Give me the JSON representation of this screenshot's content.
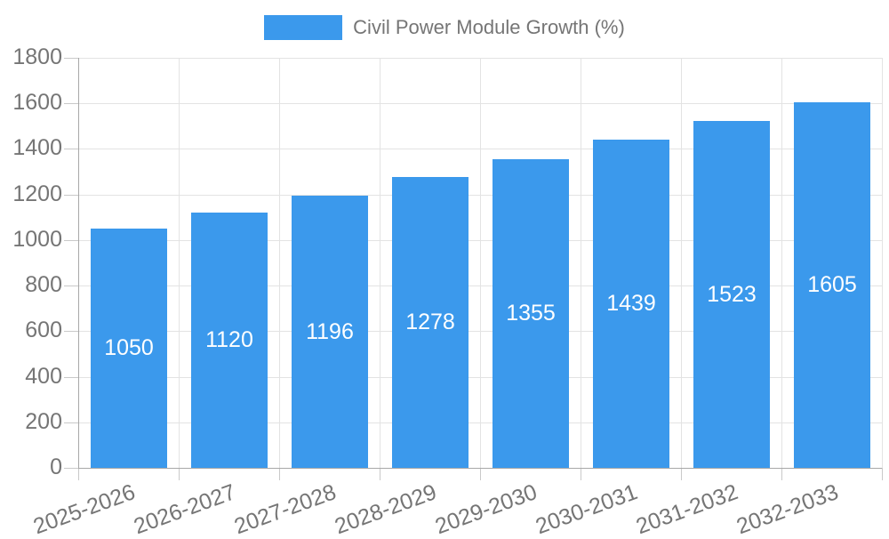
{
  "chart_data": {
    "type": "bar",
    "title": "",
    "legend_label": "Civil Power Module Growth (%)",
    "legend_position": "top",
    "xlabel": "",
    "ylabel": "",
    "categories": [
      "2025-2026",
      "2026-2027",
      "2027-2028",
      "2028-2029",
      "2029-2030",
      "2030-2031",
      "2031-2032",
      "2032-2033"
    ],
    "values": [
      1050,
      1120,
      1196,
      1278,
      1355,
      1439,
      1523,
      1605
    ],
    "ylim": [
      0,
      1800
    ],
    "yticks": [
      0,
      200,
      400,
      600,
      800,
      1000,
      1200,
      1400,
      1600,
      1800
    ],
    "grid": true,
    "bar_labels_visible": true,
    "colors": {
      "bar": "#3b99ec",
      "bar_label": "#ffffff",
      "axis_text": "#757575",
      "grid_line": "#e3e3e3",
      "axis_line": "#a8a8a8",
      "tick_line": "#c9c9c9",
      "background": "#ffffff"
    }
  }
}
